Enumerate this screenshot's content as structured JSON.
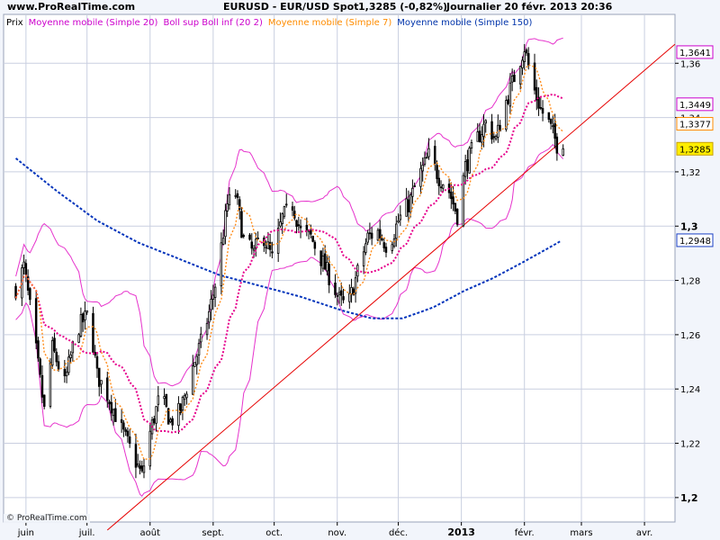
{
  "header": {
    "site": "www.ProRealTime.com",
    "instrument": "EURUSD - EUR/USD Spot",
    "quote": "1,3285 (-0,82%)",
    "period": "Journalier  20 févr. 2013 20:36"
  },
  "legend": [
    {
      "text": "Prix",
      "color": "#000000"
    },
    {
      "text": "Moyenne mobile (Simple 20)",
      "color": "#cc00cc"
    },
    {
      "text": "Boll sup Boll inf (20 2)",
      "color": "#cc00cc"
    },
    {
      "text": "Moyenne mobile (Simple 7)",
      "color": "#ff8c00"
    },
    {
      "text": "Moyenne mobile (Simple 150)",
      "color": "#0033aa"
    }
  ],
  "copyright": "© ProRealTime.com",
  "colors": {
    "background": "#f2f5fb",
    "grid": "#c9cfe0",
    "candle": "#000000",
    "bollinger": "#e633cc",
    "sma20": "#e6008c",
    "sma7": "#ff8c1a",
    "sma150": "#0033bb",
    "trendline": "#e60000"
  },
  "chart_data": {
    "type": "candlestick",
    "y_range": [
      1.191,
      1.378
    ],
    "y_ticks": [
      "1,2",
      "1,22",
      "1,24",
      "1,26",
      "1,28",
      "1,3",
      "1,32",
      "1,34",
      "1,36"
    ],
    "y_tick_values": [
      1.2,
      1.22,
      1.24,
      1.26,
      1.28,
      1.3,
      1.32,
      1.34,
      1.36
    ],
    "y_bold_ticks": [
      "1,2",
      "1,3"
    ],
    "x_labels": [
      {
        "label": "juin",
        "day": 5
      },
      {
        "label": "juil.",
        "day": 35
      },
      {
        "label": "août",
        "day": 66
      },
      {
        "label": "sept.",
        "day": 97
      },
      {
        "label": "oct.",
        "day": 127
      },
      {
        "label": "nov.",
        "day": 158
      },
      {
        "label": "déc.",
        "day": 188
      },
      {
        "label": "2013",
        "day": 219,
        "bold": true
      },
      {
        "label": "févr.",
        "day": 250
      },
      {
        "label": "mars",
        "day": 278
      },
      {
        "label": "avr.",
        "day": 309
      }
    ],
    "x_range": [
      -6,
      324
    ],
    "price_key_points": [
      [
        0,
        1.277
      ],
      [
        4,
        1.285
      ],
      [
        8,
        1.265
      ],
      [
        14,
        1.232
      ],
      [
        18,
        1.255
      ],
      [
        24,
        1.242
      ],
      [
        30,
        1.262
      ],
      [
        36,
        1.268
      ],
      [
        40,
        1.245
      ],
      [
        45,
        1.238
      ],
      [
        52,
        1.225
      ],
      [
        58,
        1.215
      ],
      [
        62,
        1.208
      ],
      [
        66,
        1.224
      ],
      [
        71,
        1.238
      ],
      [
        76,
        1.228
      ],
      [
        81,
        1.232
      ],
      [
        86,
        1.246
      ],
      [
        91,
        1.257
      ],
      [
        95,
        1.268
      ],
      [
        99,
        1.282
      ],
      [
        104,
        1.308
      ],
      [
        108,
        1.312
      ],
      [
        112,
        1.295
      ],
      [
        117,
        1.29
      ],
      [
        121,
        1.298
      ],
      [
        126,
        1.288
      ],
      [
        131,
        1.303
      ],
      [
        136,
        1.308
      ],
      [
        140,
        1.298
      ],
      [
        145,
        1.296
      ],
      [
        150,
        1.288
      ],
      [
        155,
        1.28
      ],
      [
        159,
        1.273
      ],
      [
        163,
        1.27
      ],
      [
        168,
        1.283
      ],
      [
        173,
        1.296
      ],
      [
        178,
        1.298
      ],
      [
        183,
        1.292
      ],
      [
        188,
        1.302
      ],
      [
        193,
        1.308
      ],
      [
        198,
        1.318
      ],
      [
        203,
        1.326
      ],
      [
        208,
        1.318
      ],
      [
        212,
        1.315
      ],
      [
        217,
        1.304
      ],
      [
        221,
        1.322
      ],
      [
        226,
        1.331
      ],
      [
        231,
        1.338
      ],
      [
        236,
        1.332
      ],
      [
        241,
        1.346
      ],
      [
        246,
        1.357
      ],
      [
        250,
        1.366
      ],
      [
        254,
        1.352
      ],
      [
        258,
        1.343
      ],
      [
        262,
        1.338
      ],
      [
        266,
        1.33
      ],
      [
        269,
        1.3285
      ]
    ],
    "sma150_key_points": [
      [
        0,
        1.325
      ],
      [
        20,
        1.313
      ],
      [
        40,
        1.302
      ],
      [
        60,
        1.294
      ],
      [
        80,
        1.288
      ],
      [
        100,
        1.282
      ],
      [
        120,
        1.278
      ],
      [
        140,
        1.274
      ],
      [
        160,
        1.269
      ],
      [
        175,
        1.266
      ],
      [
        190,
        1.266
      ],
      [
        205,
        1.27
      ],
      [
        220,
        1.276
      ],
      [
        235,
        1.281
      ],
      [
        250,
        1.287
      ],
      [
        262,
        1.292
      ],
      [
        269,
        1.295
      ]
    ],
    "trendline": {
      "from": [
        45,
        1.188
      ],
      "to": [
        324,
        1.367
      ]
    },
    "price_boxes": [
      {
        "value": 1.3641,
        "text": "1,3641",
        "border": "#cc00cc",
        "fill": "#ffffff"
      },
      {
        "value": 1.3449,
        "text": "1,3449",
        "border": "#cc00cc",
        "fill": "#ffffff"
      },
      {
        "value": 1.3377,
        "text": "1,3377",
        "border": "#ff8c00",
        "fill": "#ffffff"
      },
      {
        "value": 1.3285,
        "text": "1,3285",
        "border": "#c8a000",
        "fill": "#ffee00"
      },
      {
        "value": 1.2948,
        "text": "1,2948",
        "border": "#1a3fc4",
        "fill": "#ffffff"
      }
    ]
  }
}
